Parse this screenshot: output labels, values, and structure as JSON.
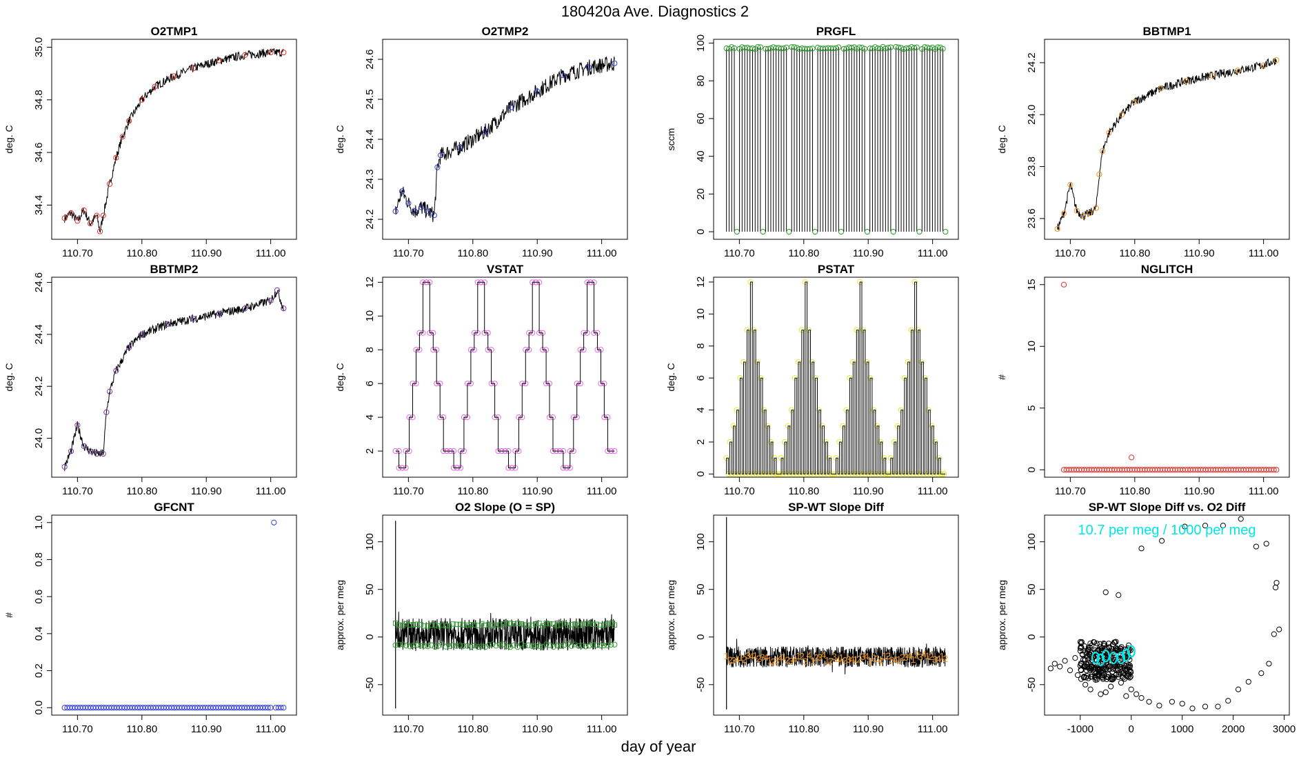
{
  "page": {
    "title": "180420a   Ave. Diagnostics 2",
    "xlabel": "day of year"
  },
  "chart_data": [
    {
      "id": "o2tmp1",
      "type": "line",
      "title": "O2TMP1",
      "xlabel": "",
      "ylabel": "deg. C",
      "xlim": [
        110.66,
        111.04
      ],
      "ylim": [
        34.27,
        35.03
      ],
      "yticks": [
        34.4,
        34.6,
        34.8,
        35.0
      ],
      "ytick_labels": [
        "34.4",
        "34.6",
        "34.8",
        "35.0"
      ],
      "xticks": [
        110.7,
        110.8,
        110.9,
        111.0
      ],
      "xtick_labels": [
        "110.70",
        "110.80",
        "110.90",
        "111.00"
      ],
      "line_color": "#000000",
      "marker": "circle",
      "marker_color": "#e0302a",
      "x": [
        110.68,
        110.69,
        110.7,
        110.71,
        110.72,
        110.73,
        110.735,
        110.74,
        110.75,
        110.76,
        110.77,
        110.78,
        110.8,
        110.82,
        110.85,
        110.88,
        110.92,
        110.96,
        111.0,
        111.02
      ],
      "y": [
        34.35,
        34.37,
        34.34,
        34.38,
        34.33,
        34.36,
        34.3,
        34.36,
        34.48,
        34.58,
        34.66,
        34.72,
        34.8,
        34.85,
        34.89,
        34.92,
        34.95,
        34.97,
        34.98,
        34.98
      ]
    },
    {
      "id": "o2tmp2",
      "type": "line",
      "title": "O2TMP2",
      "xlabel": "",
      "ylabel": "deg. C",
      "xlim": [
        110.66,
        111.04
      ],
      "ylim": [
        24.15,
        24.65
      ],
      "yticks": [
        24.2,
        24.3,
        24.4,
        24.5,
        24.6
      ],
      "ytick_labels": [
        "24.2",
        "24.3",
        "24.4",
        "24.5",
        "24.6"
      ],
      "xticks": [
        110.7,
        110.8,
        110.9,
        111.0
      ],
      "xtick_labels": [
        "110.70",
        "110.80",
        "110.90",
        "111.00"
      ],
      "line_color": "#000000",
      "marker": "circle",
      "marker_color": "#2a3ad6",
      "x": [
        110.68,
        110.69,
        110.7,
        110.71,
        110.72,
        110.73,
        110.74,
        110.745,
        110.75,
        110.78,
        110.82,
        110.86,
        110.9,
        110.94,
        110.98,
        111.02
      ],
      "y": [
        24.22,
        24.27,
        24.24,
        24.22,
        24.23,
        24.22,
        24.21,
        24.33,
        24.36,
        24.38,
        24.42,
        24.48,
        24.52,
        24.56,
        24.58,
        24.59
      ]
    },
    {
      "id": "prgfl",
      "type": "line",
      "title": "PRGFL",
      "xlabel": "",
      "ylabel": "sccm",
      "xlim": [
        110.66,
        111.04
      ],
      "ylim": [
        -4,
        102
      ],
      "yticks": [
        0,
        20,
        40,
        60,
        80,
        100
      ],
      "ytick_labels": [
        "0",
        "20",
        "40",
        "60",
        "80",
        "100"
      ],
      "xticks": [
        110.7,
        110.8,
        110.9,
        111.0
      ],
      "xtick_labels": [
        "110.70",
        "110.80",
        "110.90",
        "111.00"
      ],
      "line_color": "#000000",
      "marker": "circle",
      "marker_color": "#2e9b2e",
      "x_start": 110.68,
      "x_end": 111.02,
      "samples": 85,
      "high_value": 98,
      "low_value": 0,
      "low_every": 10,
      "low_offset": 4
    },
    {
      "id": "bbtmp1",
      "type": "line",
      "title": "BBTMP1",
      "xlabel": "",
      "ylabel": "deg. C",
      "xlim": [
        110.66,
        111.04
      ],
      "ylim": [
        23.52,
        24.29
      ],
      "yticks": [
        23.6,
        23.8,
        24.0,
        24.2
      ],
      "ytick_labels": [
        "23.6",
        "23.8",
        "24.0",
        "24.2"
      ],
      "xticks": [
        110.7,
        110.8,
        110.9,
        111.0
      ],
      "xtick_labels": [
        "110.70",
        "110.80",
        "110.90",
        "111.00"
      ],
      "line_color": "#000000",
      "marker": "circle",
      "marker_color": "#f0961e",
      "x": [
        110.68,
        110.69,
        110.7,
        110.71,
        110.72,
        110.73,
        110.74,
        110.745,
        110.75,
        110.76,
        110.78,
        110.8,
        110.84,
        110.88,
        110.92,
        110.96,
        111.0,
        111.02
      ],
      "y": [
        23.56,
        23.62,
        23.73,
        23.63,
        23.61,
        23.62,
        23.64,
        23.77,
        23.86,
        23.93,
        24.0,
        24.05,
        24.1,
        24.13,
        24.15,
        24.17,
        24.19,
        24.21
      ]
    },
    {
      "id": "bbtmp2",
      "type": "line",
      "title": "BBTMP2",
      "xlabel": "",
      "ylabel": "deg. C",
      "xlim": [
        110.66,
        111.04
      ],
      "ylim": [
        23.85,
        24.62
      ],
      "yticks": [
        24.0,
        24.2,
        24.4,
        24.6
      ],
      "ytick_labels": [
        "24.0",
        "24.2",
        "24.4",
        "24.6"
      ],
      "xticks": [
        110.7,
        110.8,
        110.9,
        111.0
      ],
      "xtick_labels": [
        "110.70",
        "110.80",
        "110.90",
        "111.00"
      ],
      "line_color": "#000000",
      "marker": "circle",
      "marker_color": "#7a3aa8",
      "x": [
        110.68,
        110.69,
        110.7,
        110.71,
        110.72,
        110.73,
        110.74,
        110.745,
        110.75,
        110.76,
        110.78,
        110.8,
        110.84,
        110.88,
        110.92,
        110.96,
        111.0,
        111.01,
        111.02
      ],
      "y": [
        23.89,
        23.95,
        24.05,
        23.97,
        23.95,
        23.94,
        23.94,
        24.1,
        24.18,
        24.26,
        24.35,
        24.4,
        24.44,
        24.46,
        24.48,
        24.5,
        24.53,
        24.57,
        24.5
      ]
    },
    {
      "id": "vstat",
      "type": "line",
      "title": "VSTAT",
      "xlabel": "",
      "ylabel": "deg. C",
      "xlim": [
        110.66,
        111.04
      ],
      "ylim": [
        0.45,
        12.3
      ],
      "yticks": [
        2,
        4,
        6,
        8,
        10,
        12
      ],
      "ytick_labels": [
        "2",
        "4",
        "6",
        "8",
        "10",
        "12"
      ],
      "xticks": [
        110.7,
        110.8,
        110.9,
        111.0
      ],
      "xtick_labels": [
        "110.70",
        "110.80",
        "110.90",
        "111.00"
      ],
      "line_color": "#000000",
      "marker": "circle",
      "marker_color": "#e06ae0",
      "step": true,
      "x_start": 110.68,
      "x_end": 111.02,
      "pattern": [
        2,
        1,
        1,
        2,
        4,
        6,
        8,
        9,
        12,
        12,
        9,
        8,
        6,
        4,
        2,
        2
      ],
      "cycles": 4
    },
    {
      "id": "pstat",
      "type": "line",
      "title": "PSTAT",
      "xlabel": "",
      "ylabel": "deg. C",
      "xlim": [
        110.66,
        111.04
      ],
      "ylim": [
        -0.2,
        12.3
      ],
      "yticks": [
        0,
        2,
        4,
        6,
        8,
        10,
        12
      ],
      "ytick_labels": [
        "0",
        "2",
        "4",
        "6",
        "8",
        "10",
        "12"
      ],
      "xticks": [
        110.7,
        110.8,
        110.9,
        111.0
      ],
      "xtick_labels": [
        "110.70",
        "110.80",
        "110.90",
        "111.00"
      ],
      "line_color": "#000000",
      "marker": "circle",
      "marker_color": "#e6e632",
      "spike": true,
      "x_start": 110.68,
      "x_end": 111.02,
      "pattern": [
        1,
        2,
        3,
        4,
        6,
        7,
        9,
        12,
        9,
        7,
        6,
        4,
        3,
        2,
        1,
        0
      ],
      "cycles": 4
    },
    {
      "id": "nglitch",
      "type": "scatter",
      "title": "NGLITCH",
      "xlabel": "",
      "ylabel": "#",
      "xlim": [
        110.66,
        111.04
      ],
      "ylim": [
        -0.6,
        15.6
      ],
      "yticks": [
        0,
        5,
        10,
        15
      ],
      "ytick_labels": [
        "0",
        "5",
        "10",
        "15"
      ],
      "xticks": [
        110.7,
        110.8,
        110.9,
        111.0
      ],
      "xtick_labels": [
        "110.70",
        "110.80",
        "110.90",
        "111.00"
      ],
      "marker": "circle",
      "marker_color": "#e0302a",
      "x_start": 110.69,
      "x_end": 111.02,
      "samples": 85,
      "value": 0,
      "extra_points": [
        {
          "x": 110.69,
          "y": 15
        },
        {
          "x": 110.795,
          "y": 1
        }
      ]
    },
    {
      "id": "gfcnt",
      "type": "scatter",
      "title": "GFCNT",
      "xlabel": "",
      "ylabel": "#",
      "xlim": [
        110.66,
        111.04
      ],
      "ylim": [
        -0.04,
        1.04
      ],
      "yticks": [
        0.0,
        0.2,
        0.4,
        0.6,
        0.8,
        1.0
      ],
      "ytick_labels": [
        "0.0",
        "0.2",
        "0.4",
        "0.6",
        "0.8",
        "1.0"
      ],
      "xticks": [
        110.7,
        110.8,
        110.9,
        111.0
      ],
      "xtick_labels": [
        "110.70",
        "110.80",
        "110.90",
        "111.00"
      ],
      "marker": "circle",
      "marker_color": "#2a3ad6",
      "x_start": 110.68,
      "x_end": 111.02,
      "samples": 85,
      "value": 0,
      "extra_points": [
        {
          "x": 111.005,
          "y": 1.0
        }
      ]
    },
    {
      "id": "o2slope",
      "type": "line",
      "title": "O2 Slope (O = SP)",
      "xlabel": "",
      "ylabel": "approx. per meg",
      "xlim": [
        110.66,
        111.04
      ],
      "ylim": [
        -82,
        128
      ],
      "yticks": [
        -50,
        0,
        50,
        100
      ],
      "ytick_labels": [
        "-50",
        "0",
        "50",
        "100"
      ],
      "xticks": [
        110.7,
        110.8,
        110.9,
        111.0
      ],
      "xtick_labels": [
        "110.70",
        "110.80",
        "110.90",
        "111.00"
      ],
      "line_color": "#000000",
      "marker_color": "#2e9b2e",
      "x_start": 110.68,
      "x_end": 111.02,
      "band_min": -14,
      "band_max": 20,
      "square_series": {
        "name": "squares",
        "value": 13
      },
      "circle_series": {
        "name": "circles",
        "value": -9
      },
      "spike": {
        "x": 110.68,
        "min": -75,
        "max": 122
      }
    },
    {
      "id": "spwt",
      "type": "line",
      "title": "SP-WT Slope Diff",
      "xlabel": "",
      "ylabel": "approx. per meg",
      "xlim": [
        110.66,
        111.04
      ],
      "ylim": [
        -82,
        128
      ],
      "yticks": [
        -50,
        0,
        50,
        100
      ],
      "ytick_labels": [
        "-50",
        "0",
        "50",
        "100"
      ],
      "xticks": [
        110.7,
        110.8,
        110.9,
        111.0
      ],
      "xtick_labels": [
        "110.70",
        "110.80",
        "110.90",
        "111.00"
      ],
      "line_color": "#000000",
      "marker_color": "#f0961e",
      "x_start": 110.68,
      "x_end": 111.02,
      "band_min": -32,
      "band_max": -10,
      "label_value": -22,
      "labels": [
        "1",
        "2",
        "3",
        "4"
      ],
      "spike": {
        "x": 110.68,
        "min": -76,
        "max": 126
      }
    },
    {
      "id": "spwt_vs_o2",
      "type": "scatter",
      "title": "SP-WT Slope Diff vs. O2 Diff",
      "xlabel": "",
      "ylabel": "approx. per meg",
      "xlim": [
        -1700,
        3100
      ],
      "ylim": [
        -82,
        128
      ],
      "yticks": [
        -50,
        0,
        50,
        100
      ],
      "ytick_labels": [
        "-50",
        "0",
        "50",
        "100"
      ],
      "xticks": [
        -1000,
        0,
        1000,
        2000,
        3000
      ],
      "xtick_labels": [
        "-1000",
        "0",
        "1000",
        "2000",
        "3000"
      ],
      "marker": "circle",
      "marker_color": "#000000",
      "highlight_color": "#00e5e5",
      "annotation": "10.7 per meg / 1000 per meg",
      "points": [
        {
          "x": -1580,
          "y": -33
        },
        {
          "x": -1500,
          "y": -28
        },
        {
          "x": -1400,
          "y": -31
        },
        {
          "x": -1300,
          "y": -25
        },
        {
          "x": -1200,
          "y": -35
        },
        {
          "x": -1100,
          "y": -22
        },
        {
          "x": -1050,
          "y": -40
        },
        {
          "x": -1000,
          "y": -30
        },
        {
          "x": -900,
          "y": -50
        },
        {
          "x": -800,
          "y": -55
        },
        {
          "x": -700,
          "y": -45
        },
        {
          "x": -600,
          "y": -60
        },
        {
          "x": -500,
          "y": -58
        },
        {
          "x": -400,
          "y": -52
        },
        {
          "x": -300,
          "y": -40
        },
        {
          "x": -200,
          "y": -48
        },
        {
          "x": -100,
          "y": -62
        },
        {
          "x": 0,
          "y": -55
        },
        {
          "x": 100,
          "y": -60
        },
        {
          "x": -500,
          "y": 47
        },
        {
          "x": -300,
          "y": -5
        },
        {
          "x": -250,
          "y": 44
        },
        {
          "x": 200,
          "y": 93
        },
        {
          "x": 600,
          "y": 101
        },
        {
          "x": 200,
          "y": -64
        },
        {
          "x": 350,
          "y": -68
        },
        {
          "x": 550,
          "y": -72
        },
        {
          "x": 800,
          "y": -68
        },
        {
          "x": 1000,
          "y": -70
        },
        {
          "x": 1200,
          "y": -75
        },
        {
          "x": 1450,
          "y": -73
        },
        {
          "x": 1700,
          "y": -73
        },
        {
          "x": 1900,
          "y": -67
        },
        {
          "x": 2100,
          "y": -55
        },
        {
          "x": 2300,
          "y": -47
        },
        {
          "x": 2550,
          "y": -38
        },
        {
          "x": 2700,
          "y": -28
        },
        {
          "x": 2850,
          "y": 57
        },
        {
          "x": 2830,
          "y": 52
        },
        {
          "x": 2650,
          "y": 98
        },
        {
          "x": 2450,
          "y": 95
        },
        {
          "x": 2800,
          "y": 3
        },
        {
          "x": 2900,
          "y": 8
        },
        {
          "x": 2150,
          "y": 124
        },
        {
          "x": 1450,
          "y": 117
        },
        {
          "x": 1800,
          "y": 117
        },
        {
          "x": 1050,
          "y": 116
        }
      ],
      "cluster": {
        "x_min": -1000,
        "x_max": 0,
        "y_min": -45,
        "y_max": -5
      },
      "highlight_points": [
        {
          "x": -700,
          "y": -22
        },
        {
          "x": -600,
          "y": -24
        },
        {
          "x": -500,
          "y": -20
        },
        {
          "x": -350,
          "y": -22
        },
        {
          "x": -200,
          "y": -22
        },
        {
          "x": -100,
          "y": -19
        },
        {
          "x": 0,
          "y": -15
        }
      ]
    }
  ]
}
